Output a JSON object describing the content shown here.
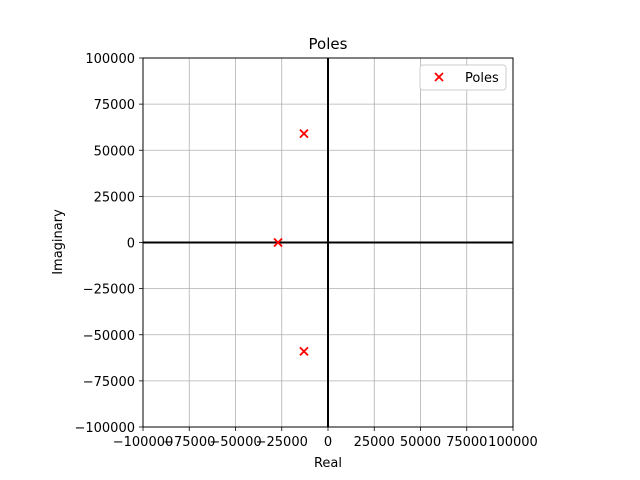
{
  "chart_data": {
    "type": "scatter",
    "title": "Poles",
    "xlabel": "Real",
    "ylabel": "Imaginary",
    "xlim": [
      -100000,
      100000
    ],
    "ylim": [
      -100000,
      100000
    ],
    "x_ticks": [
      -100000,
      -75000,
      -50000,
      -25000,
      0,
      25000,
      50000,
      75000,
      100000
    ],
    "y_ticks": [
      -100000,
      -75000,
      -50000,
      -25000,
      0,
      25000,
      50000,
      75000,
      100000
    ],
    "x_tick_labels": [
      "−100000",
      "−75000",
      "−50000",
      "−25000",
      "0",
      "25000",
      "50000",
      "75000",
      "100000"
    ],
    "y_tick_labels": [
      "−100000",
      "−75000",
      "−50000",
      "−25000",
      "0",
      "25000",
      "50000",
      "75000",
      "100000"
    ],
    "grid": true,
    "legend_position": "top-right",
    "series": [
      {
        "name": "Poles",
        "marker": "x",
        "color": "#ff0000",
        "points": [
          {
            "x": -13000,
            "y": 59000
          },
          {
            "x": -27000,
            "y": 0
          },
          {
            "x": -13000,
            "y": -59000
          }
        ]
      }
    ],
    "axis_line_color": "#000000",
    "grid_color": "#b0b0b0"
  }
}
